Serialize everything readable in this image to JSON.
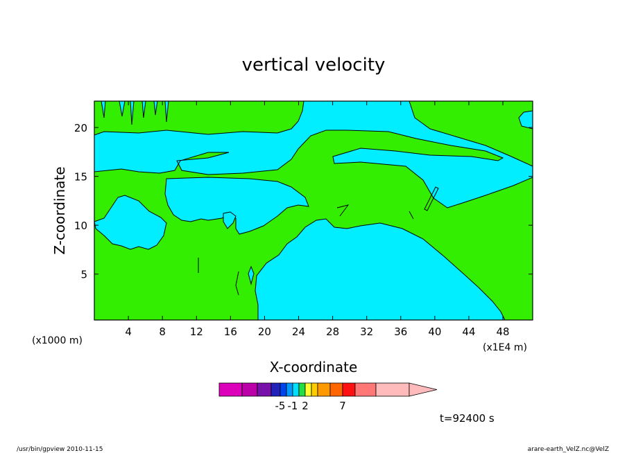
{
  "chart_data": {
    "type": "heatmap",
    "title": "vertical velocity",
    "xlabel": "X-coordinate",
    "ylabel": "Z-coordinate",
    "x_unit_left": "(x1000 m)",
    "x_unit_right": "(x1E4 m)",
    "xlim": [
      0,
      51.5
    ],
    "ylim": [
      0.3,
      22.7
    ],
    "x_ticks": [
      4,
      8,
      12,
      16,
      20,
      24,
      28,
      32,
      36,
      40,
      44,
      48
    ],
    "y_ticks": [
      5,
      10,
      15,
      20
    ],
    "time_label": "t=92400 s",
    "colorbar": {
      "colors": [
        "#dd00bb",
        "#bb00aa",
        "#7711aa",
        "#2222bb",
        "#0044ee",
        "#0099ff",
        "#00ddff",
        "#22dd44",
        "#ffff33",
        "#ffcc00",
        "#ff9900",
        "#ff6600",
        "#ff1111",
        "#ff7777",
        "#ffbbbb"
      ],
      "labels": [
        {
          "text": "-5",
          "index": 3
        },
        {
          "text": "-1",
          "index": 5
        },
        {
          "text": "2",
          "index": 7
        },
        {
          "text": "7",
          "index": 11
        }
      ]
    },
    "fields": {
      "negative_color": "#00eeff",
      "positive_color": "#33ee00"
    }
  },
  "footer": {
    "left": "/usr/bin/gpview  2010-11-15",
    "right": "arare-earth_VelZ.nc@VelZ"
  }
}
